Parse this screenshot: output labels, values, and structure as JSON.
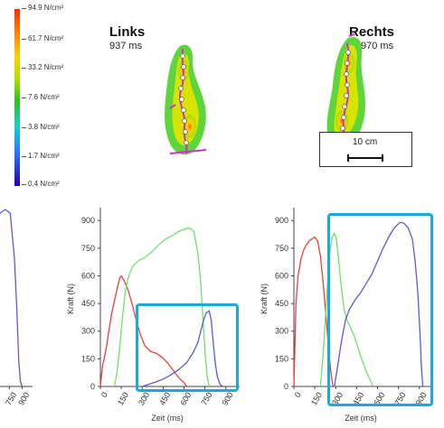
{
  "legend": {
    "labels": [
      "94.9 N/cm²",
      "61.7 N/cm²",
      "33.2 N/cm²",
      "7.6 N/cm²",
      "3.8 N/cm²",
      "1.7 N/cm²",
      "0.4 N/cm²"
    ]
  },
  "feet": {
    "left": {
      "title": "Links",
      "time": "937 ms"
    },
    "right": {
      "title": "Rechts",
      "time": "970 ms"
    }
  },
  "scale": {
    "label": "10 cm"
  },
  "colors": {
    "red": "#e8413c",
    "green": "#6ee06e",
    "blue": "#5a5ad6",
    "highlight": "#1da9dc",
    "trace": "#cc33cc"
  },
  "chart_data": [
    {
      "type": "line",
      "partial": true,
      "x_ticks": [
        "750",
        "900"
      ],
      "series": [
        {
          "color": "blue",
          "points": [
            [
              480,
              690
            ],
            [
              560,
              880
            ],
            [
              640,
              940
            ],
            [
              700,
              960
            ],
            [
              760,
              940
            ],
            [
              810,
              700
            ],
            [
              840,
              400
            ],
            [
              860,
              150
            ],
            [
              880,
              30
            ],
            [
              900,
              0
            ]
          ]
        }
      ]
    },
    {
      "type": "line",
      "ylabel": "Kraft (N)",
      "xlabel": "Zeit (ms)",
      "y_ticks": [
        "0",
        "150",
        "300",
        "450",
        "600",
        "750",
        "900"
      ],
      "x_ticks": [
        "0",
        "150",
        "300",
        "450",
        "600",
        "750",
        "900"
      ],
      "xlim": [
        0,
        960
      ],
      "ylim": [
        0,
        950
      ],
      "series": [
        {
          "color": "red",
          "points": [
            [
              0,
              0
            ],
            [
              15,
              110
            ],
            [
              30,
              160
            ],
            [
              45,
              220
            ],
            [
              60,
              300
            ],
            [
              80,
              390
            ],
            [
              100,
              460
            ],
            [
              120,
              530
            ],
            [
              140,
              590
            ],
            [
              150,
              600
            ],
            [
              170,
              575
            ],
            [
              200,
              520
            ],
            [
              230,
              440
            ],
            [
              260,
              350
            ],
            [
              290,
              275
            ],
            [
              320,
              220
            ],
            [
              360,
              190
            ],
            [
              400,
              180
            ],
            [
              440,
              160
            ],
            [
              480,
              130
            ],
            [
              520,
              90
            ],
            [
              560,
              50
            ],
            [
              600,
              20
            ],
            [
              620,
              0
            ]
          ]
        },
        {
          "color": "green",
          "points": [
            [
              100,
              0
            ],
            [
              120,
              80
            ],
            [
              140,
              220
            ],
            [
              160,
              390
            ],
            [
              180,
              520
            ],
            [
              200,
              590
            ],
            [
              230,
              650
            ],
            [
              270,
              680
            ],
            [
              320,
              700
            ],
            [
              370,
              730
            ],
            [
              420,
              770
            ],
            [
              470,
              800
            ],
            [
              520,
              820
            ],
            [
              560,
              840
            ],
            [
              610,
              855
            ],
            [
              640,
              860
            ],
            [
              670,
              840
            ],
            [
              700,
              720
            ],
            [
              720,
              560
            ],
            [
              735,
              380
            ],
            [
              750,
              200
            ],
            [
              765,
              60
            ],
            [
              780,
              0
            ]
          ]
        },
        {
          "color": "blue",
          "points": [
            [
              300,
              0
            ],
            [
              340,
              10
            ],
            [
              400,
              25
            ],
            [
              450,
              40
            ],
            [
              500,
              60
            ],
            [
              560,
              90
            ],
            [
              620,
              130
            ],
            [
              670,
              190
            ],
            [
              700,
              240
            ],
            [
              720,
              300
            ],
            [
              740,
              360
            ],
            [
              760,
              400
            ],
            [
              780,
              410
            ],
            [
              795,
              360
            ],
            [
              810,
              230
            ],
            [
              825,
              120
            ],
            [
              840,
              50
            ],
            [
              860,
              10
            ],
            [
              880,
              0
            ]
          ]
        }
      ]
    },
    {
      "type": "line",
      "ylabel": "Kraft (N)",
      "xlabel": "Zeit (ms)",
      "y_ticks": [
        "0",
        "150",
        "300",
        "450",
        "600",
        "750",
        "900"
      ],
      "x_ticks": [
        "0",
        "150",
        "300",
        "450",
        "600",
        "750",
        "900"
      ],
      "xlim": [
        0,
        960
      ],
      "ylim": [
        0,
        950
      ],
      "series": [
        {
          "color": "red",
          "points": [
            [
              0,
              0
            ],
            [
              15,
              450
            ],
            [
              30,
              600
            ],
            [
              50,
              690
            ],
            [
              70,
              740
            ],
            [
              90,
              770
            ],
            [
              110,
              790
            ],
            [
              130,
              800
            ],
            [
              150,
              810
            ],
            [
              170,
              790
            ],
            [
              190,
              710
            ],
            [
              210,
              560
            ],
            [
              230,
              380
            ],
            [
              250,
              200
            ],
            [
              265,
              80
            ],
            [
              280,
              0
            ]
          ]
        },
        {
          "color": "green",
          "points": [
            [
              190,
              0
            ],
            [
              210,
              180
            ],
            [
              230,
              420
            ],
            [
              245,
              600
            ],
            [
              260,
              740
            ],
            [
              275,
              810
            ],
            [
              290,
              830
            ],
            [
              305,
              800
            ],
            [
              320,
              700
            ],
            [
              340,
              540
            ],
            [
              360,
              420
            ],
            [
              380,
              360
            ],
            [
              400,
              330
            ],
            [
              430,
              280
            ],
            [
              460,
              210
            ],
            [
              490,
              140
            ],
            [
              520,
              80
            ],
            [
              550,
              30
            ],
            [
              570,
              0
            ]
          ]
        },
        {
          "color": "blue",
          "points": [
            [
              290,
              0
            ],
            [
              310,
              90
            ],
            [
              340,
              240
            ],
            [
              370,
              360
            ],
            [
              400,
              420
            ],
            [
              440,
              470
            ],
            [
              480,
              510
            ],
            [
              520,
              560
            ],
            [
              560,
              610
            ],
            [
              600,
              680
            ],
            [
              640,
              750
            ],
            [
              680,
              810
            ],
            [
              720,
              860
            ],
            [
              760,
              890
            ],
            [
              790,
              885
            ],
            [
              820,
              860
            ],
            [
              850,
              800
            ],
            [
              870,
              680
            ],
            [
              890,
              500
            ],
            [
              905,
              280
            ],
            [
              915,
              100
            ],
            [
              925,
              0
            ]
          ]
        }
      ]
    }
  ]
}
